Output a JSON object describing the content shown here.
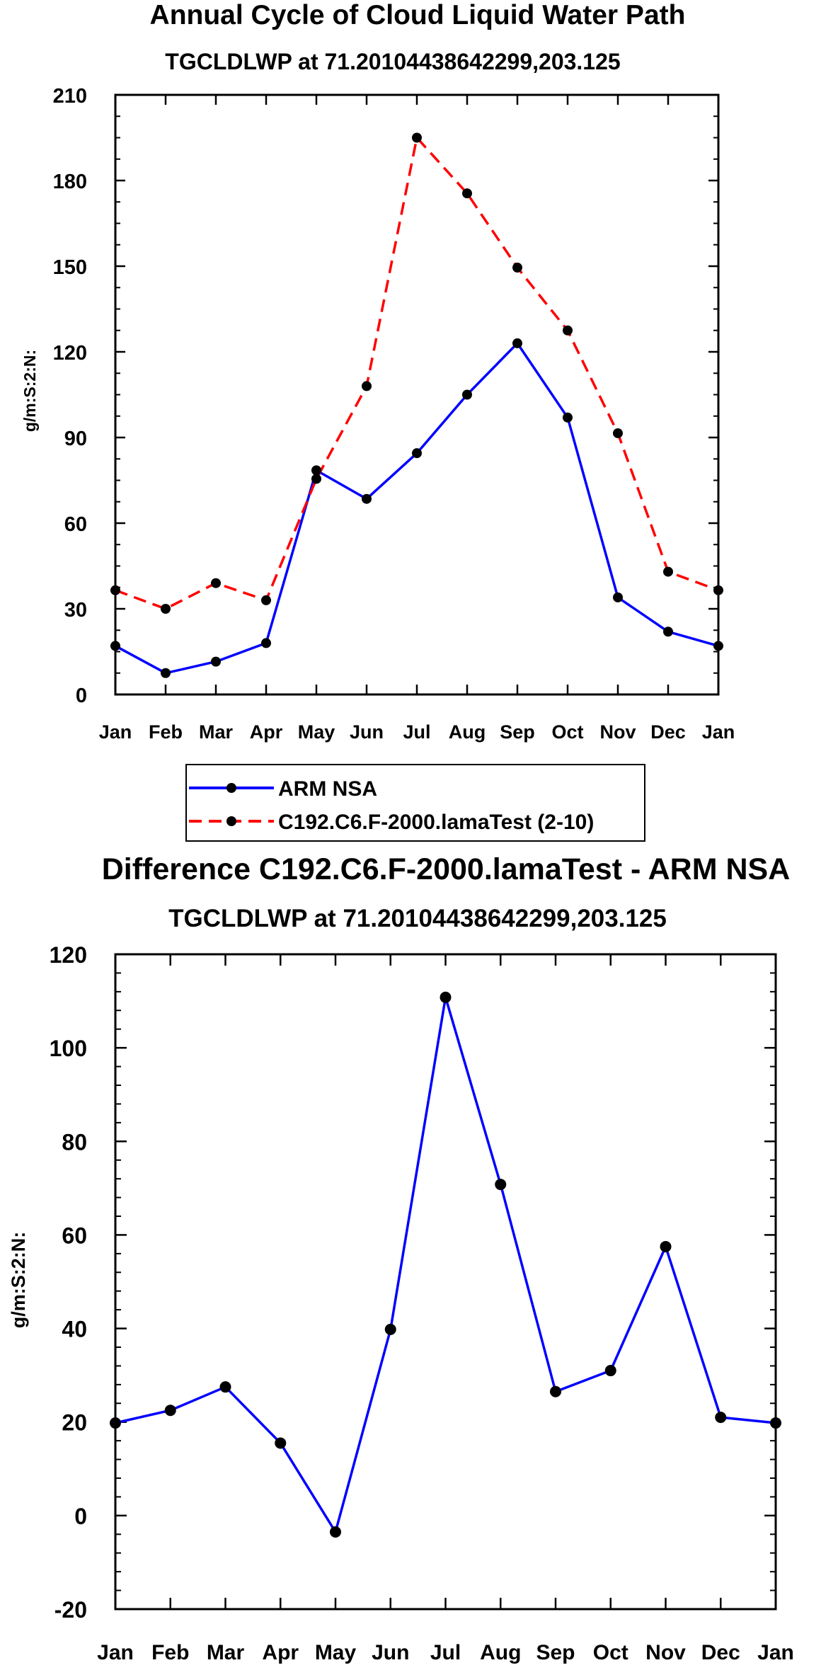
{
  "chart_data": [
    {
      "type": "line",
      "title": "Annual Cycle of Cloud Liquid Water Path",
      "subtitle": "TGCLDLWP at 71.20104438642299,203.125",
      "xlabel": "",
      "ylabel": "g/m:S:2:N:",
      "categories": [
        "Jan",
        "Feb",
        "Mar",
        "Apr",
        "May",
        "Jun",
        "Jul",
        "Aug",
        "Sep",
        "Oct",
        "Nov",
        "Dec",
        "Jan"
      ],
      "ylim": [
        0,
        210
      ],
      "yticks": [
        0,
        30,
        60,
        90,
        120,
        150,
        180,
        210
      ],
      "ytick_labels": [
        "0",
        "30",
        "60",
        "90",
        "120",
        "150",
        "180",
        "210"
      ],
      "grid": false,
      "legend_position": "bottom",
      "series": [
        {
          "name": "ARM NSA",
          "color": "#0000ff",
          "dashed": false,
          "values": [
            17,
            7.5,
            11.5,
            18,
            78.5,
            68.5,
            84.5,
            105,
            123,
            97,
            34,
            22,
            17
          ]
        },
        {
          "name": "C192.C6.F-2000.lamaTest (2-10)",
          "color": "#ff0000",
          "dashed": true,
          "values": [
            36.5,
            30,
            39,
            33,
            75.5,
            108,
            195,
            175.5,
            149.5,
            127.5,
            91.5,
            43,
            36.5
          ]
        }
      ]
    },
    {
      "type": "line",
      "title": "Difference C192.C6.F-2000.lamaTest - ARM NSA",
      "subtitle": "TGCLDLWP at 71.20104438642299,203.125",
      "xlabel": "",
      "ylabel": "g/m:S:2:N:",
      "categories": [
        "Jan",
        "Feb",
        "Mar",
        "Apr",
        "May",
        "Jun",
        "Jul",
        "Aug",
        "Sep",
        "Oct",
        "Nov",
        "Dec",
        "Jan"
      ],
      "ylim": [
        -20,
        120
      ],
      "yticks": [
        -20,
        0,
        20,
        40,
        60,
        80,
        100,
        120
      ],
      "ytick_labels": [
        "-20",
        "0",
        "20",
        "40",
        "60",
        "80",
        "100",
        "120"
      ],
      "grid": false,
      "series": [
        {
          "name": "Difference",
          "color": "#0000ff",
          "dashed": false,
          "values": [
            19.8,
            22.5,
            27.5,
            15.5,
            -3.5,
            39.8,
            110.8,
            70.8,
            26.5,
            31,
            57.5,
            21,
            19.8
          ]
        }
      ]
    }
  ]
}
